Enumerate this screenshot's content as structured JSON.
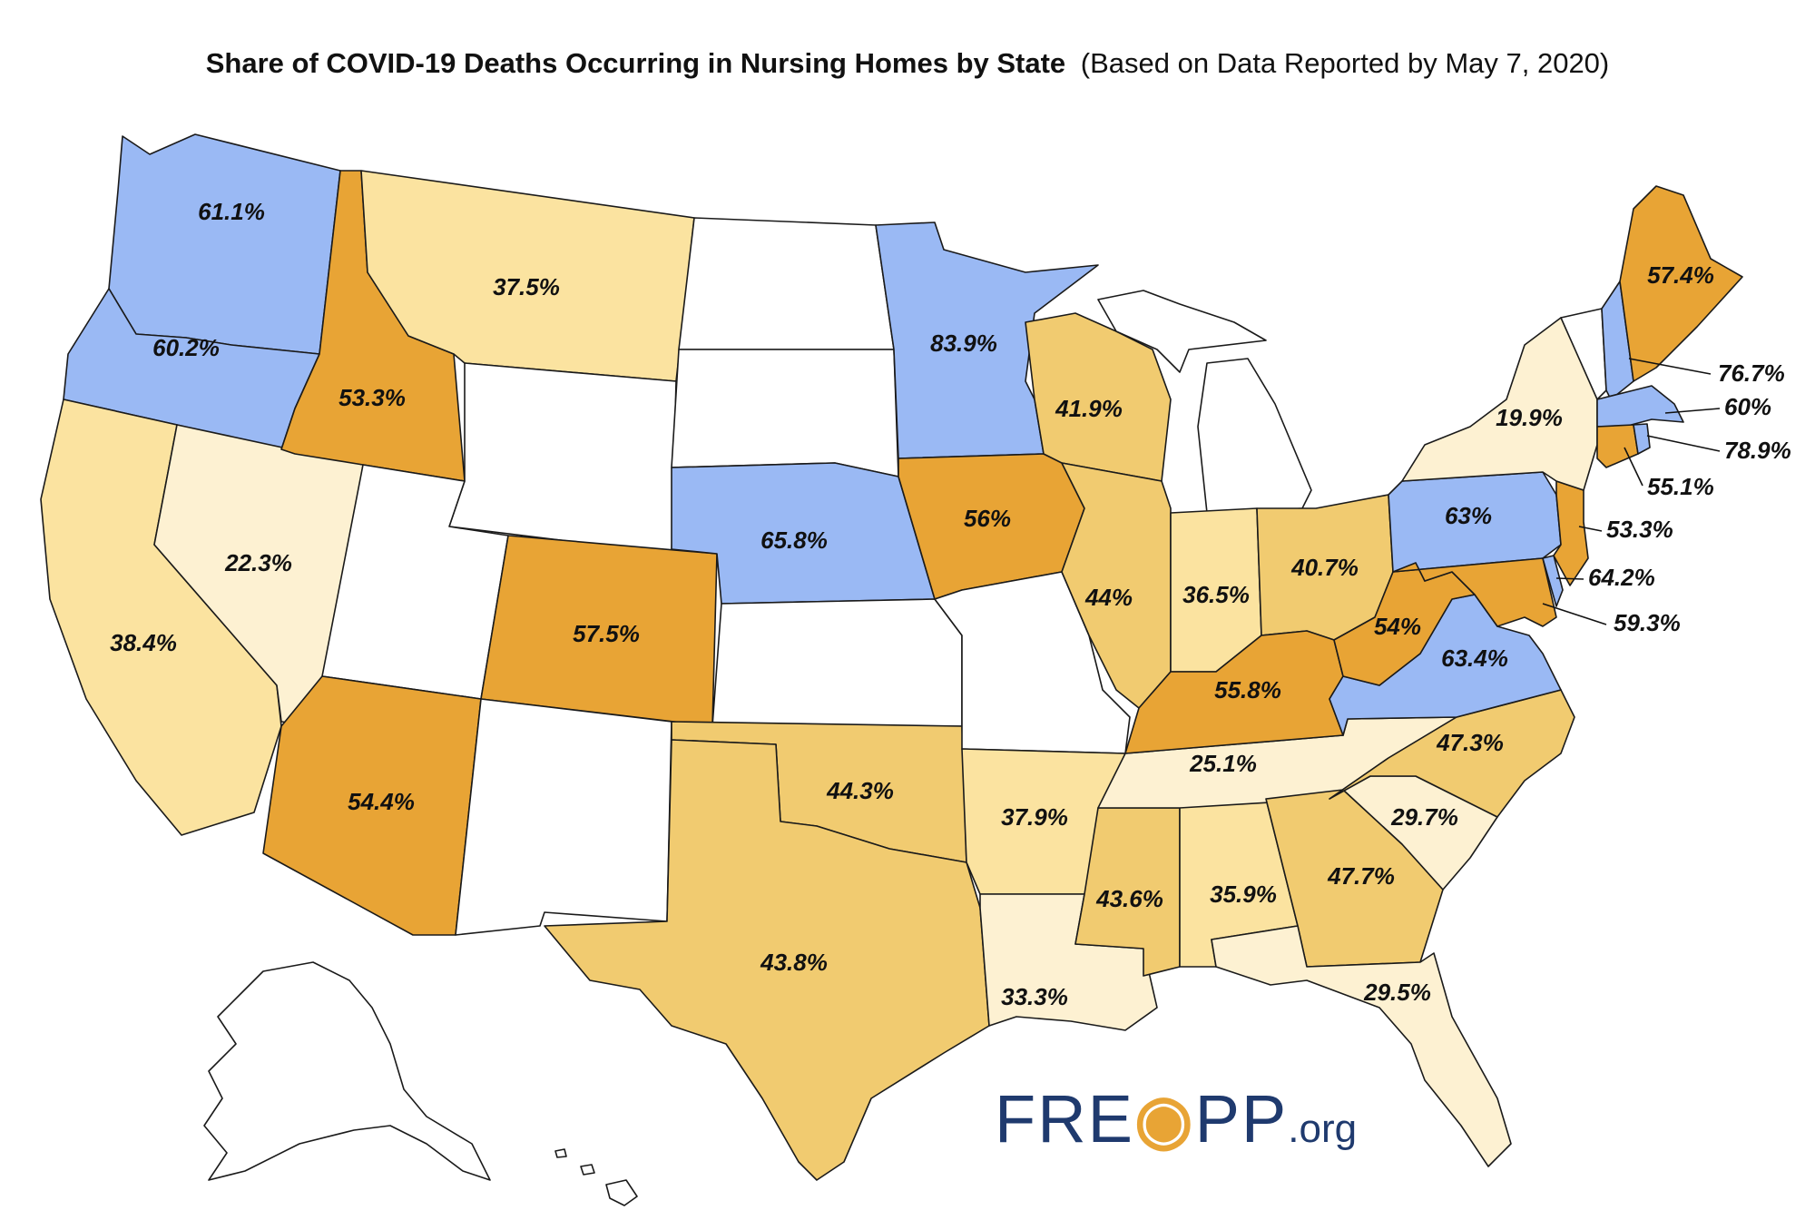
{
  "title": {
    "main": "Share of COVID-19 Deaths Occurring in Nursing Homes by State",
    "sub": "(Based on Data Reported by May 7, 2020)"
  },
  "colors": {
    "blue": "#9ab9f4",
    "dark_orange": "#e8a435",
    "gold": "#f1cb70",
    "light_yellow": "#fbe3a0",
    "pale_cream": "#fdf1d2",
    "no_data": "#ffffff",
    "logo_navy": "#1f3a6e"
  },
  "logo": {
    "text_a": "FRE",
    "text_b": "PP",
    "text_org": ".org"
  },
  "states": {
    "WA": "61.1%",
    "OR": "60.2%",
    "CA": "38.4%",
    "NV": "22.3%",
    "ID": "53.3%",
    "MT": "37.5%",
    "AZ": "54.4%",
    "CO": "57.5%",
    "NE": "65.8%",
    "MN": "83.9%",
    "IA": "56%",
    "WI": "41.9%",
    "IL": "44%",
    "IN": "36.5%",
    "OH": "40.7%",
    "KY": "55.8%",
    "WV": "54%",
    "VA": "63.4%",
    "PA": "63%",
    "NY": "19.9%",
    "ME": "57.4%",
    "TX": "43.8%",
    "OK": "44.3%",
    "AR": "37.9%",
    "LA": "33.3%",
    "MS": "43.6%",
    "AL": "35.9%",
    "GA": "47.7%",
    "FL": "29.5%",
    "SC": "29.7%",
    "NC": "47.3%",
    "TN": "25.1%",
    "NH": "76.7%",
    "MA": "60%",
    "RI": "78.9%",
    "CT": "55.1%",
    "NJ": "53.3%",
    "DE": "64.2%",
    "MD": "59.3%"
  }
}
